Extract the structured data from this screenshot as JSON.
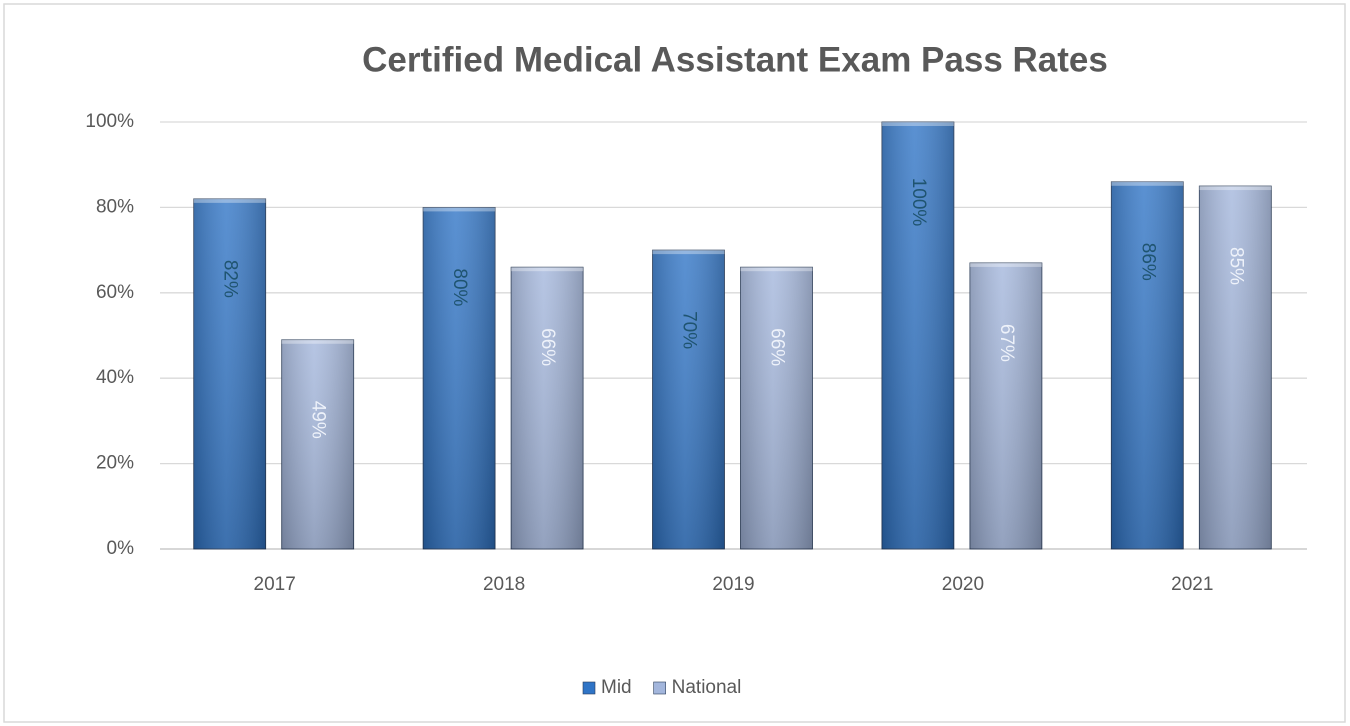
{
  "chart_data": {
    "type": "bar",
    "title": "Certified Medical Assistant Exam Pass Rates",
    "categories": [
      "2017",
      "2018",
      "2019",
      "2020",
      "2021"
    ],
    "series": [
      {
        "name": "Mid",
        "color": "#2f74c6",
        "label_color": "#1f5470",
        "values": [
          82,
          80,
          70,
          100,
          86
        ],
        "value_labels": [
          "82%",
          "80%",
          "70%",
          "100%",
          "86%"
        ]
      },
      {
        "name": "National",
        "color": "#a3b6dc",
        "label_color": "#eef2fa",
        "values": [
          49,
          66,
          66,
          67,
          85
        ],
        "value_labels": [
          "49%",
          "66%",
          "66%",
          "67%",
          "85%"
        ]
      }
    ],
    "ylim": [
      0,
      100
    ],
    "yticks": [
      {
        "value": 0,
        "label": "0%"
      },
      {
        "value": 20,
        "label": "20%"
      },
      {
        "value": 40,
        "label": "40%"
      },
      {
        "value": 60,
        "label": "60%"
      },
      {
        "value": 80,
        "label": "80%"
      },
      {
        "value": 100,
        "label": "100%"
      }
    ],
    "grid": true,
    "legend": "bottom"
  }
}
